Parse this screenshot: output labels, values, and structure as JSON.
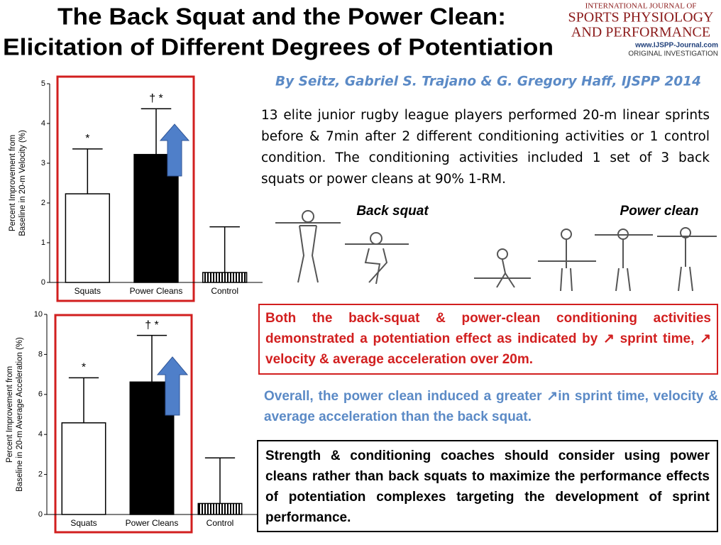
{
  "header": {
    "title": [
      "The Back Squat and the Power Clean:",
      "Elicitation of Different Degrees of Potentiation"
    ],
    "journal": [
      "INTERNATIONAL JOURNAL OF",
      "SPORTS PHYSIOLOGY",
      "AND PERFORMANCE",
      "www.IJSPP-Journal.com",
      "ORIGINAL INVESTIGATION"
    ]
  },
  "byline": "By Seitz, Gabriel S. Trajano & G. Gregory Haff, IJSPP 2014",
  "summary": "13 elite junior rugby league players performed 20-m linear sprints before & 7min after 2 different conditioning activities or 1 control condition. The conditioning activities included 1 set of 3 back squats or power cleans at 90% 1-RM.",
  "exercise_labels": [
    "Back squat",
    "Power clean"
  ],
  "findings": [
    "Both the back-squat & power-clean conditioning activities demonstrated a potentiation effect as indicated by ↗ sprint time, ↗ velocity & average acceleration over 20m.",
    "Overall, the power clean induced a greater ↗in sprint time, velocity & average acceleration than the back squat.",
    "Strength & conditioning coaches should consider using power cleans rather than back squats to  maximize the performance effects of potentiation complexes targeting the development of sprint performance."
  ],
  "chart_data": [
    {
      "type": "bar",
      "ylabel": [
        "Percent Improvement from",
        "Baseline in 20-m Velocity (%)"
      ],
      "categories": [
        "Squats",
        "Power Cleans",
        "Control"
      ],
      "values": [
        2.23,
        3.22,
        0.25
      ],
      "errors": [
        1.13,
        1.15,
        1.15
      ],
      "annotations": [
        "*",
        "† *",
        null
      ],
      "colors": [
        "#ffffff",
        "#000000",
        "#ffffff"
      ],
      "patterns": [
        null,
        null,
        "vertical-lines"
      ],
      "ylim": [
        0,
        5
      ],
      "yticks": [
        0,
        1,
        2,
        3,
        4,
        5
      ]
    },
    {
      "type": "bar",
      "ylabel": [
        "Percent Improvement from",
        "Baseline in 20-m Average Acceleration (%)"
      ],
      "categories": [
        "Squats",
        "Power Cleans",
        "Control"
      ],
      "values": [
        4.58,
        6.62,
        0.55
      ],
      "errors": [
        2.25,
        2.33,
        2.28
      ],
      "annotations": [
        "*",
        "† *",
        null
      ],
      "colors": [
        "#ffffff",
        "#000000",
        "#ffffff"
      ],
      "patterns": [
        null,
        null,
        "vertical-lines"
      ],
      "ylim": [
        0,
        10
      ],
      "yticks": [
        0,
        2,
        4,
        6,
        8,
        10
      ]
    }
  ]
}
